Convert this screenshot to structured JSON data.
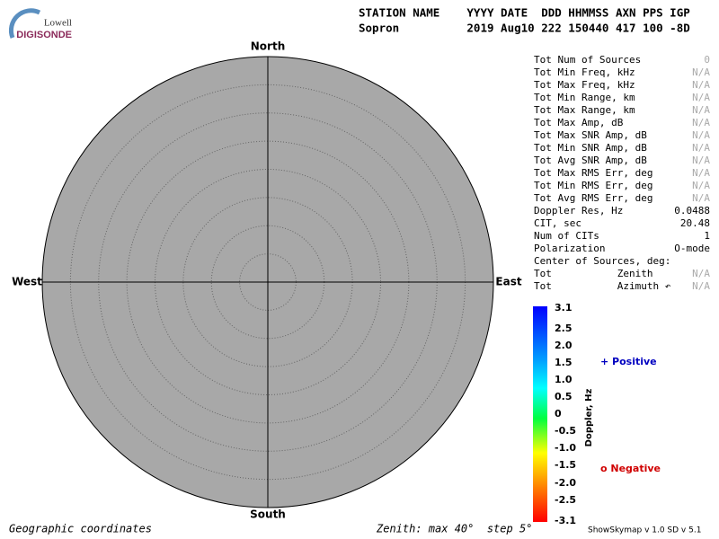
{
  "logo": {
    "top": "Lowell",
    "bottom": "DIGISONDE"
  },
  "header": {
    "labels": "STATION NAME    YYYY DATE  DDD HHMMSS AXN PPS IGP",
    "values": "Sopron          2019 Aug10 222 150440 417 100 -8D"
  },
  "compass": {
    "north": "North",
    "south": "South",
    "west": "West",
    "east": "East"
  },
  "stats": {
    "rows": [
      [
        "Tot Num of Sources",
        "0"
      ],
      [
        "Tot Min Freq, kHz",
        "N/A"
      ],
      [
        "Tot Max Freq, kHz",
        "N/A"
      ],
      [
        "Tot Min Range, km",
        "N/A"
      ],
      [
        "Tot Max Range, km",
        "N/A"
      ],
      [
        "Tot Max Amp, dB",
        "N/A"
      ],
      [
        "Tot Max SNR Amp, dB",
        "N/A"
      ],
      [
        "Tot Min SNR Amp, dB",
        "N/A"
      ],
      [
        "Tot Avg SNR Amp, dB",
        "N/A"
      ],
      [
        "Tot Max RMS Err, deg",
        "N/A"
      ],
      [
        "Tot Min RMS Err, deg",
        "N/A"
      ],
      [
        "Tot Avg RMS Err, deg",
        "N/A"
      ],
      [
        "Doppler Res, Hz",
        "0.0488"
      ],
      [
        "CIT, sec",
        "20.48"
      ],
      [
        "Num of CITs",
        "1"
      ],
      [
        "Polarization",
        "O-mode"
      ],
      [
        "Center of Sources, deg:",
        ""
      ],
      [
        "Tot           Zenith",
        "N/A"
      ],
      [
        "Tot           Azimuth ↶",
        "N/A"
      ]
    ]
  },
  "colorbar": {
    "title": "Doppler, Hz",
    "labels": [
      "3.1",
      "2.5",
      "2.0",
      "1.5",
      "1.0",
      "0.5",
      "0",
      "-0.5",
      "-1.0",
      "-1.5",
      "-2.0",
      "-2.5",
      "-3.1"
    ]
  },
  "legend": {
    "positive": "+ Positive",
    "negative": "o Negative"
  },
  "footer": {
    "coords": "Geographic coordinates",
    "zenith": "Zenith: max 40°  step 5°",
    "version": "ShowSkymap v 1.0   SD v 5.1"
  }
}
